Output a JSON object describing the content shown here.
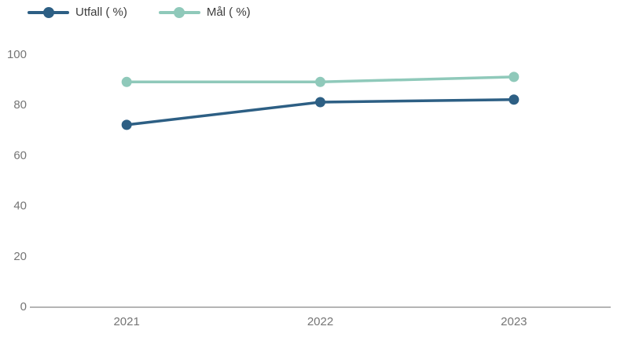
{
  "chart_data": {
    "type": "line",
    "title": "",
    "xlabel": "",
    "ylabel": "",
    "categories": [
      "2021",
      "2022",
      "2023"
    ],
    "series": [
      {
        "name": "Utfall ( %)",
        "values": [
          72,
          81,
          82
        ],
        "color": "#2d5f84"
      },
      {
        "name": "Mål ( %)",
        "values": [
          89,
          89,
          91
        ],
        "color": "#8fc9ba"
      }
    ],
    "ylim": [
      0,
      100
    ],
    "yticks": [
      0,
      20,
      40,
      60,
      80,
      100
    ],
    "legend_position": "top-left",
    "grid": false,
    "colors": {
      "axis_line": "#b5b5b5",
      "tick_label": "#757575",
      "legend_text": "#3c3c3c",
      "background": "#ffffff"
    }
  }
}
